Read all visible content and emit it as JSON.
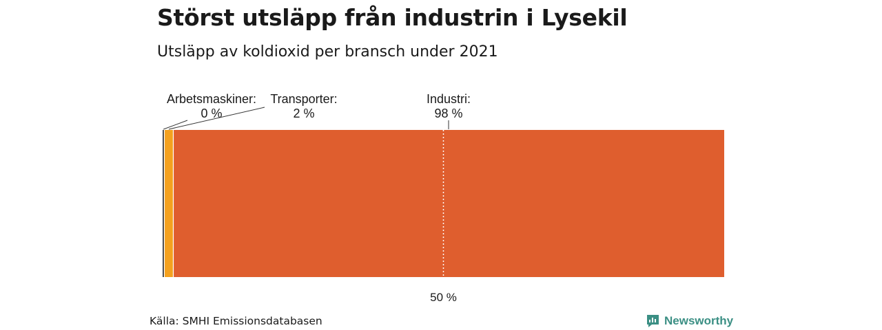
{
  "title": "Störst utsläpp från industrin i Lysekil",
  "subtitle": "Utsläpp av koldioxid per bransch under 2021",
  "source": "Källa: SMHI Emissionsdatabasen",
  "brand": {
    "name": "Newsworthy",
    "color": "#3b8f84",
    "icon": "newsworthy-logo-icon"
  },
  "chart_data": {
    "type": "bar",
    "orientation": "stacked-horizontal-100-percent",
    "categories": [
      "Arbetsmaskiner",
      "Transporter",
      "Industri"
    ],
    "values": [
      0.3,
      1.6,
      98.1
    ],
    "labels": [
      "Arbetsmaskiner:",
      "Transporter:",
      "Industri:"
    ],
    "value_labels": [
      "0 %",
      "2 %",
      "98 %"
    ],
    "colors": [
      "#3d3d3d",
      "#f4a11e",
      "#df5e2e"
    ],
    "xlim": [
      0,
      100
    ],
    "reference_line": {
      "value": 50,
      "label": "50 %",
      "style": "dotted"
    },
    "grid": false,
    "legend": "none"
  }
}
